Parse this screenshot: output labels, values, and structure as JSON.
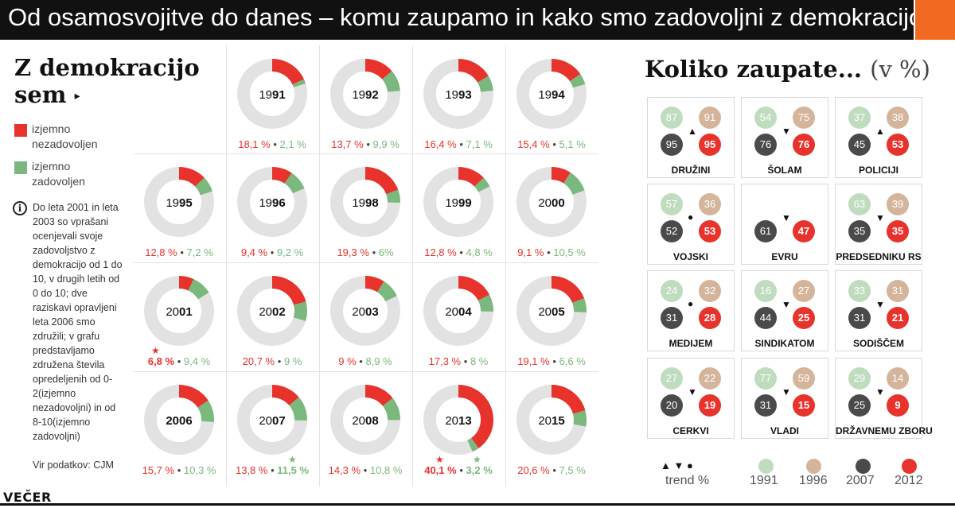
{
  "title": "Od osamosvojitve do danes – komu zaupamo in kako smo zadovoljni z demokracijo?",
  "left": {
    "heading_line1": "Z demokracijo",
    "heading_line2": "sem",
    "heading_arrow": "▸",
    "legend_red": "izjemno nezadovoljen",
    "legend_green": "izjemno zadovoljen",
    "note_icon": "i",
    "note": "Do leta 2001 in leta 2003 so vprašani ocenjevali svoje zadovoljstvo z demokracijo od 1 do 10, v drugih letih od 0 do 10; dve raziskavi opravljeni leta 2006 smo združili; v grafu predstavljamo združena števila opredeljenih od 0-2(izjemno nezadovoljni) in od 8-10(izjemno zadovoljni)",
    "source": "Vir podatkov: CJM"
  },
  "right": {
    "heading": "Koliko zaupate...",
    "unit": "(v %)"
  },
  "legend": {
    "trend_symbols": "▲ ▼ ●",
    "trend_label": "trend %",
    "years": [
      "1991",
      "1996",
      "2007",
      "2012"
    ]
  },
  "logo": "VEČER",
  "colors": {
    "red": "#e8322c",
    "green": "#7ab87d",
    "grey_ring": "#e2e2e2",
    "c1991": "#bfdcbf",
    "c1996": "#d4b59b",
    "c2007": "#4a4a4a",
    "c2012": "#e8322c",
    "orange_accent": "#f26a21"
  },
  "chart_data": [
    {
      "type": "pie",
      "title": "Z demokracijo sem",
      "series": [
        {
          "name": "izjemno nezadovoljen",
          "values": [
            18.1,
            13.7,
            16.4,
            15.4,
            12.8,
            9.4,
            19.3,
            12.8,
            9.1,
            6.8,
            20.7,
            9,
            17.3,
            19.1,
            15.7,
            13.8,
            14.3,
            40.1,
            20.6
          ]
        },
        {
          "name": "izjemno zadovoljen",
          "values": [
            2.1,
            9.9,
            7.1,
            5.1,
            7.2,
            9.2,
            6,
            4.8,
            10.5,
            9.4,
            9,
            8.9,
            8,
            6.6,
            10.3,
            11.5,
            10.8,
            3.2,
            7.5
          ]
        }
      ],
      "years": [
        {
          "year": "1991",
          "bold": "91",
          "red": 18.1,
          "green": 2.1,
          "red_label": "18,1 %",
          "green_label": "2,1 %"
        },
        {
          "year": "1992",
          "bold": "92",
          "red": 13.7,
          "green": 9.9,
          "red_label": "13,7 %",
          "green_label": "9,9 %"
        },
        {
          "year": "1993",
          "bold": "93",
          "red": 16.4,
          "green": 7.1,
          "red_label": "16,4 %",
          "green_label": "7,1 %"
        },
        {
          "year": "1994",
          "bold": "94",
          "red": 15.4,
          "green": 5.1,
          "red_label": "15,4 %",
          "green_label": "5,1 %"
        },
        {
          "year": "1995",
          "bold": "95",
          "red": 12.8,
          "green": 7.2,
          "red_label": "12,8 %",
          "green_label": "7,2 %"
        },
        {
          "year": "1996",
          "bold": "96",
          "red": 9.4,
          "green": 9.2,
          "red_label": "9,4 %",
          "green_label": "9,2 %"
        },
        {
          "year": "1998",
          "bold": "98",
          "red": 19.3,
          "green": 6,
          "red_label": "19,3 %",
          "green_label": "6%"
        },
        {
          "year": "1999",
          "bold": "99",
          "red": 12.8,
          "green": 4.8,
          "red_label": "12,8 %",
          "green_label": "4,8 %"
        },
        {
          "year": "2000",
          "bold": "00",
          "red": 9.1,
          "green": 10.5,
          "red_label": "9,1 %",
          "green_label": "10,5 %"
        },
        {
          "year": "2001",
          "bold": "01",
          "red": 6.8,
          "green": 9.4,
          "red_label": "6,8 %",
          "green_label": "9,4 %",
          "star": "red"
        },
        {
          "year": "2002",
          "bold": "02",
          "red": 20.7,
          "green": 9,
          "red_label": "20,7 %",
          "green_label": "9 %"
        },
        {
          "year": "2003",
          "bold": "03",
          "red": 9,
          "green": 8.9,
          "red_label": "9 %",
          "green_label": "8,9 %"
        },
        {
          "year": "2004",
          "bold": "04",
          "red": 17.3,
          "green": 8,
          "red_label": "17,3 %",
          "green_label": "8 %"
        },
        {
          "year": "2005",
          "bold": "05",
          "red": 19.1,
          "green": 6.6,
          "red_label": "19,1 %",
          "green_label": "6,6 %"
        },
        {
          "year": "2006",
          "bold": "2006",
          "red": 15.7,
          "green": 10.3,
          "red_label": "15,7 %",
          "green_label": "10,3 %"
        },
        {
          "year": "2007",
          "bold": "07",
          "red": 13.8,
          "green": 11.5,
          "red_label": "13,8 %",
          "green_label": "11,5 %",
          "star": "green"
        },
        {
          "year": "2008",
          "bold": "08",
          "red": 14.3,
          "green": 10.8,
          "red_label": "14,3 %",
          "green_label": "10,8 %"
        },
        {
          "year": "2013",
          "bold": "13",
          "red": 40.1,
          "green": 3.2,
          "red_label": "40,1 %",
          "green_label": "3,2 %",
          "star": "both"
        },
        {
          "year": "2015",
          "bold": "15",
          "red": 20.6,
          "green": 7.5,
          "red_label": "20,6 %",
          "green_label": "7,5 %"
        }
      ]
    },
    {
      "type": "scatter",
      "title": "Koliko zaupate... (v %)",
      "series_names": [
        "1991",
        "1996",
        "2007",
        "2012"
      ],
      "institutions": [
        {
          "label": "DRUŽINI",
          "v1991": 87,
          "v1996": 91,
          "v2007": 95,
          "v2012": 95,
          "trend": "▲"
        },
        {
          "label": "ŠOLAM",
          "v1991": 54,
          "v1996": 75,
          "v2007": 76,
          "v2012": 76,
          "trend": "▼"
        },
        {
          "label": "POLICIJI",
          "v1991": 37,
          "v1996": 38,
          "v2007": 45,
          "v2012": 53,
          "trend": "▲"
        },
        {
          "label": "VOJSKI",
          "v1991": 57,
          "v1996": 36,
          "v2007": 52,
          "v2012": 53,
          "trend": "●"
        },
        {
          "label": "EVRU",
          "v1991": null,
          "v1996": null,
          "v2007": 61,
          "v2012": 47,
          "trend": "▼"
        },
        {
          "label": "PREDSEDNIKU RS",
          "v1991": 63,
          "v1996": 39,
          "v2007": 35,
          "v2012": 35,
          "trend": "▼"
        },
        {
          "label": "MEDIJEM",
          "v1991": 24,
          "v1996": 32,
          "v2007": 31,
          "v2012": 28,
          "trend": "●"
        },
        {
          "label": "SINDIKATOM",
          "v1991": 16,
          "v1996": 27,
          "v2007": 44,
          "v2012": 25,
          "trend": "▼"
        },
        {
          "label": "SODIŠČEM",
          "v1991": 33,
          "v1996": 31,
          "v2007": 31,
          "v2012": 21,
          "trend": "▼"
        },
        {
          "label": "CERKVI",
          "v1991": 27,
          "v1996": 22,
          "v2007": 20,
          "v2012": 19,
          "trend": "▼"
        },
        {
          "label": "VLADI",
          "v1991": 77,
          "v1996": 59,
          "v2007": 31,
          "v2012": 15,
          "trend": "▼"
        },
        {
          "label": "DRŽAVNEMU ZBORU",
          "v1991": 29,
          "v1996": 14,
          "v2007": 25,
          "v2012": 9,
          "trend": "▼"
        }
      ]
    }
  ]
}
